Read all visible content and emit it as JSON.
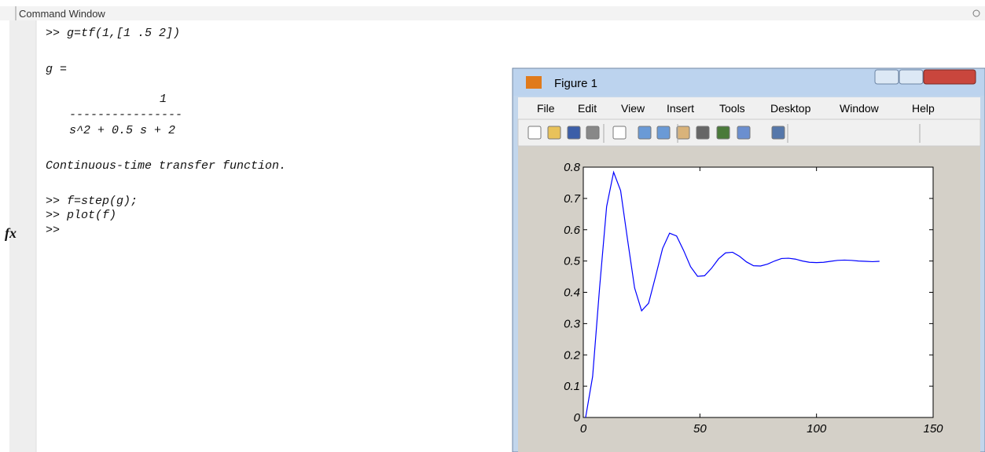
{
  "command_window": {
    "title": "Command Window",
    "lines": [
      ">> g=tf(1,[1 .5 2])",
      "g =",
      "1",
      "----------------",
      "s^2 + 0.5 s + 2",
      "Continuous-time transfer function.",
      ">> f=step(g);",
      ">> plot(f)",
      ">>"
    ],
    "prompt_icon": "fx"
  },
  "figure": {
    "title": "Figure 1",
    "menu": [
      "File",
      "Edit",
      "View",
      "Insert",
      "Tools",
      "Desktop",
      "Window",
      "Help"
    ]
  },
  "chart_data": {
    "type": "line",
    "x": [
      1,
      4,
      7,
      10,
      13,
      16,
      19,
      22,
      25,
      28,
      31,
      34,
      37,
      40,
      43,
      46,
      49,
      52,
      55,
      58,
      61,
      64,
      67,
      70,
      73,
      76,
      79,
      82,
      85,
      88,
      91,
      94,
      97,
      100,
      103,
      106,
      109,
      112,
      115,
      118,
      121,
      124,
      127
    ],
    "series": [
      {
        "color": "#0000ff",
        "values": [
          0,
          0.131,
          0.416,
          0.674,
          0.784,
          0.725,
          0.567,
          0.414,
          0.341,
          0.365,
          0.451,
          0.54,
          0.589,
          0.58,
          0.534,
          0.482,
          0.451,
          0.453,
          0.477,
          0.507,
          0.526,
          0.528,
          0.515,
          0.497,
          0.485,
          0.484,
          0.49,
          0.5,
          0.508,
          0.509,
          0.506,
          0.5,
          0.496,
          0.495,
          0.496,
          0.499,
          0.502,
          0.503,
          0.502,
          0.5,
          0.499,
          0.498,
          0.499
        ]
      }
    ],
    "xlim": [
      0,
      150
    ],
    "xticks": [
      0,
      50,
      100,
      150
    ],
    "ylim": [
      0,
      0.8
    ],
    "yticks": [
      0,
      0.1,
      0.2,
      0.3,
      0.4,
      0.5,
      0.6,
      0.7,
      0.8
    ]
  }
}
